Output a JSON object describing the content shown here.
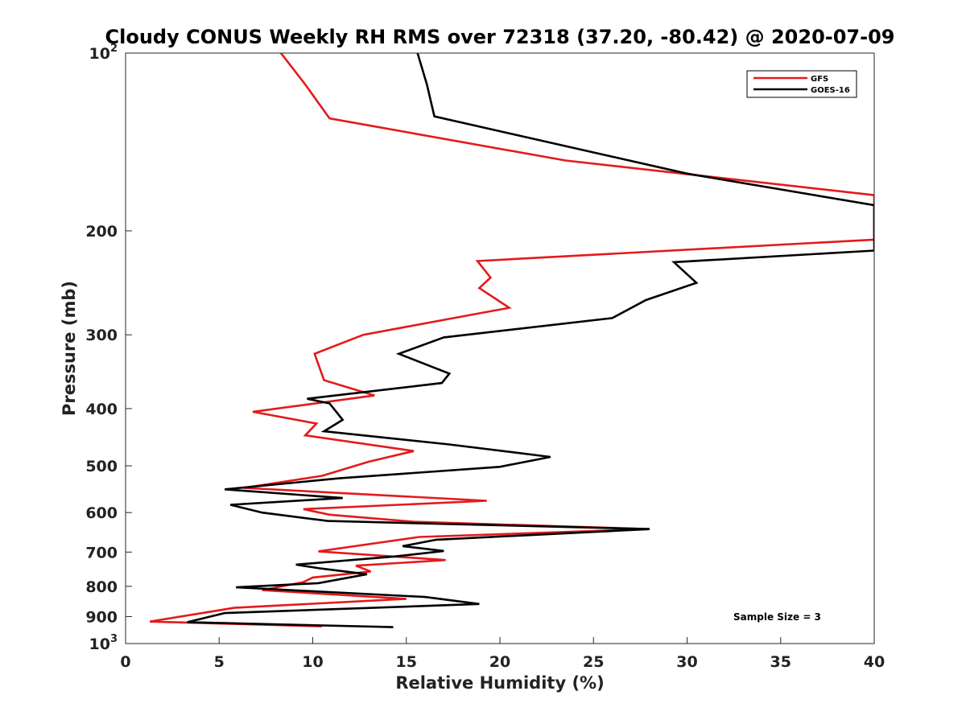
{
  "chart_data": {
    "type": "line",
    "title": "Cloudy CONUS Weekly RH RMS over 72318 (37.20, -80.42) @ 2020-07-09",
    "xlabel": "Relative Humidity (%)",
    "ylabel": "Pressure (mb)",
    "xlim": [
      0,
      40
    ],
    "ylim": [
      100,
      1000
    ],
    "yscale": "log",
    "yreversed": true,
    "grid": false,
    "x_ticks": [
      "0",
      "5",
      "10",
      "15",
      "20",
      "25",
      "30",
      "35",
      "40"
    ],
    "y_ticks": [
      {
        "base": "10",
        "exp": "2",
        "value": 100
      },
      {
        "label": "200",
        "value": 200
      },
      {
        "label": "300",
        "value": 300
      },
      {
        "label": "400",
        "value": 400
      },
      {
        "label": "500",
        "value": 500
      },
      {
        "label": "600",
        "value": 600
      },
      {
        "label": "700",
        "value": 700
      },
      {
        "label": "800",
        "value": 800
      },
      {
        "label": "900",
        "value": 900
      },
      {
        "base": "10",
        "exp": "3",
        "value": 1000
      }
    ],
    "legend_position": "top-right",
    "annotation": "Sample Size = 3",
    "series": [
      {
        "name": "GFS",
        "color": "#e31a1c",
        "points": [
          [
            8.3,
            100
          ],
          [
            9.6,
            113
          ],
          [
            10.9,
            129
          ],
          [
            23.5,
            152
          ],
          [
            40,
            174
          ],
          [
            40,
            207
          ],
          [
            18.8,
            225
          ],
          [
            19.5,
            240
          ],
          [
            18.9,
            250
          ],
          [
            20.5,
            270
          ],
          [
            12.7,
            300
          ],
          [
            10.1,
            323
          ],
          [
            10.6,
            358
          ],
          [
            13.3,
            380
          ],
          [
            6.8,
            405
          ],
          [
            10.2,
            424
          ],
          [
            9.6,
            444
          ],
          [
            15.4,
            472
          ],
          [
            13.0,
            492
          ],
          [
            10.5,
            520
          ],
          [
            6.3,
            545
          ],
          [
            19.3,
            573
          ],
          [
            9.5,
            592
          ],
          [
            10.9,
            605
          ],
          [
            15.4,
            622
          ],
          [
            28.0,
            640
          ],
          [
            15.7,
            660
          ],
          [
            10.3,
            698
          ],
          [
            17.1,
            722
          ],
          [
            12.3,
            738
          ],
          [
            13.1,
            755
          ],
          [
            10.0,
            773
          ],
          [
            9.5,
            787
          ],
          [
            7.3,
            812
          ],
          [
            15.0,
            840
          ],
          [
            5.8,
            870
          ],
          [
            1.3,
            918
          ],
          [
            10.5,
            935
          ]
        ]
      },
      {
        "name": "GOES-16",
        "color": "#000000",
        "points": [
          [
            15.6,
            100
          ],
          [
            16.1,
            113
          ],
          [
            16.5,
            128
          ],
          [
            30.0,
            160
          ],
          [
            40,
            181
          ],
          [
            40,
            216
          ],
          [
            29.3,
            226
          ],
          [
            30.5,
            245
          ],
          [
            27.8,
            262
          ],
          [
            26.0,
            281
          ],
          [
            17.0,
            303
          ],
          [
            14.6,
            323
          ],
          [
            17.3,
            349
          ],
          [
            16.9,
            362
          ],
          [
            9.7,
            385
          ],
          [
            10.9,
            392
          ],
          [
            11.6,
            418
          ],
          [
            10.6,
            437
          ],
          [
            17.3,
            460
          ],
          [
            22.7,
            483
          ],
          [
            20.0,
            502
          ],
          [
            11.4,
            525
          ],
          [
            5.3,
            548
          ],
          [
            11.6,
            567
          ],
          [
            5.6,
            582
          ],
          [
            7.3,
            600
          ],
          [
            10.8,
            620
          ],
          [
            28.0,
            640
          ],
          [
            16.6,
            667
          ],
          [
            14.8,
            684
          ],
          [
            17.0,
            697
          ],
          [
            14.4,
            712
          ],
          [
            9.1,
            735
          ],
          [
            10.4,
            746
          ],
          [
            12.9,
            763
          ],
          [
            10.3,
            790
          ],
          [
            5.9,
            803
          ],
          [
            16.0,
            834
          ],
          [
            18.9,
            857
          ],
          [
            5.3,
            888
          ],
          [
            3.3,
            920
          ],
          [
            14.3,
            938
          ]
        ]
      }
    ]
  }
}
